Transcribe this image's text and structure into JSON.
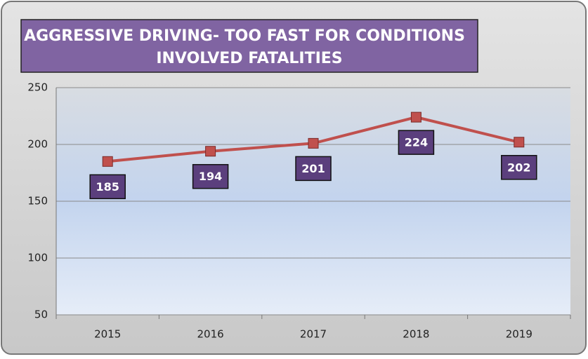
{
  "chart_data": {
    "type": "line",
    "title": [
      "AGGRESSIVE DRIVING- TOO FAST FOR CONDITIONS",
      "INVOLVED FATALITIES"
    ],
    "categories": [
      "2015",
      "2016",
      "2017",
      "2018",
      "2019"
    ],
    "values": [
      185,
      194,
      201,
      224,
      202
    ],
    "color": "#c0504d",
    "ylim": [
      50,
      250
    ],
    "yticks": [
      50,
      100,
      150,
      200,
      250
    ],
    "grid": true
  }
}
